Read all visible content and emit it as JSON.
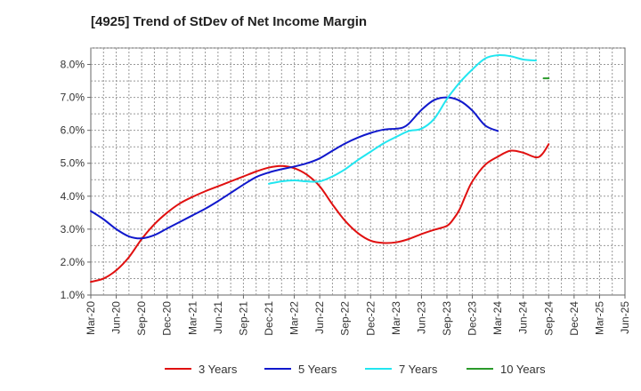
{
  "chart_data": {
    "type": "line",
    "title": "[4925]  Trend of StDev of Net Income Margin",
    "xlabel": "",
    "ylabel": "",
    "x_tick_labels": [
      "Mar-20",
      "Jun-20",
      "Sep-20",
      "Dec-20",
      "Mar-21",
      "Jun-21",
      "Sep-21",
      "Dec-21",
      "Mar-22",
      "Jun-22",
      "Sep-22",
      "Dec-22",
      "Mar-23",
      "Jun-23",
      "Sep-23",
      "Dec-23",
      "Mar-24",
      "Jun-24",
      "Sep-24",
      "Dec-24",
      "Mar-25",
      "Jun-25"
    ],
    "y_tick_labels": [
      "1.0%",
      "2.0%",
      "3.0%",
      "4.0%",
      "5.0%",
      "6.0%",
      "7.0%",
      "8.0%"
    ],
    "ylim": [
      1.0,
      8.5
    ],
    "grid": true,
    "legend_position": "bottom",
    "series": [
      {
        "name": "3 Years",
        "color": "#e01010",
        "values": [
          [
            0,
            1.4
          ],
          [
            1,
            1.5
          ],
          [
            2,
            1.75
          ],
          [
            3,
            2.15
          ],
          [
            4,
            2.7
          ],
          [
            5,
            3.15
          ],
          [
            6,
            3.5
          ],
          [
            7,
            3.78
          ],
          [
            8,
            3.98
          ],
          [
            9,
            4.15
          ],
          [
            10,
            4.3
          ],
          [
            11,
            4.45
          ],
          [
            12,
            4.6
          ],
          [
            13,
            4.75
          ],
          [
            14,
            4.87
          ],
          [
            15,
            4.92
          ],
          [
            16,
            4.85
          ],
          [
            17,
            4.65
          ],
          [
            18,
            4.3
          ],
          [
            19,
            3.75
          ],
          [
            20,
            3.25
          ],
          [
            21,
            2.88
          ],
          [
            22,
            2.65
          ],
          [
            23,
            2.58
          ],
          [
            24,
            2.6
          ],
          [
            25,
            2.7
          ],
          [
            26,
            2.85
          ],
          [
            27,
            2.98
          ],
          [
            28,
            3.1
          ],
          [
            28.5,
            3.3
          ],
          [
            29,
            3.6
          ],
          [
            29.5,
            4.05
          ],
          [
            30,
            4.45
          ],
          [
            31,
            4.95
          ],
          [
            32,
            5.2
          ],
          [
            33,
            5.38
          ],
          [
            34,
            5.32
          ],
          [
            35,
            5.18
          ],
          [
            35.5,
            5.28
          ],
          [
            36,
            5.58
          ]
        ]
      },
      {
        "name": "5 Years",
        "color": "#1018cc",
        "values": [
          [
            0,
            3.55
          ],
          [
            1,
            3.3
          ],
          [
            2,
            3.0
          ],
          [
            3,
            2.78
          ],
          [
            4,
            2.72
          ],
          [
            5,
            2.82
          ],
          [
            6,
            3.02
          ],
          [
            7,
            3.22
          ],
          [
            8,
            3.42
          ],
          [
            9,
            3.62
          ],
          [
            10,
            3.85
          ],
          [
            11,
            4.1
          ],
          [
            12,
            4.35
          ],
          [
            13,
            4.58
          ],
          [
            14,
            4.72
          ],
          [
            15,
            4.82
          ],
          [
            16,
            4.9
          ],
          [
            17,
            5.0
          ],
          [
            18,
            5.15
          ],
          [
            19,
            5.38
          ],
          [
            20,
            5.6
          ],
          [
            21,
            5.78
          ],
          [
            22,
            5.92
          ],
          [
            23,
            6.02
          ],
          [
            24,
            6.05
          ],
          [
            24.5,
            6.08
          ],
          [
            25,
            6.2
          ],
          [
            26,
            6.62
          ],
          [
            27,
            6.92
          ],
          [
            28,
            7.0
          ],
          [
            29,
            6.9
          ],
          [
            30,
            6.6
          ],
          [
            31,
            6.15
          ],
          [
            32,
            5.98
          ]
        ]
      },
      {
        "name": "7 Years",
        "color": "#22e6f0",
        "values": [
          [
            14,
            4.38
          ],
          [
            15,
            4.45
          ],
          [
            16,
            4.48
          ],
          [
            17,
            4.45
          ],
          [
            18,
            4.45
          ],
          [
            19,
            4.6
          ],
          [
            20,
            4.82
          ],
          [
            21,
            5.1
          ],
          [
            22,
            5.35
          ],
          [
            23,
            5.6
          ],
          [
            24,
            5.8
          ],
          [
            25,
            5.98
          ],
          [
            26,
            6.05
          ],
          [
            27,
            6.35
          ],
          [
            28,
            6.95
          ],
          [
            29,
            7.45
          ],
          [
            30,
            7.85
          ],
          [
            31,
            8.18
          ],
          [
            32,
            8.28
          ],
          [
            33,
            8.25
          ],
          [
            34,
            8.15
          ],
          [
            35,
            8.12
          ]
        ]
      },
      {
        "name": "10 Years",
        "color": "#2a9a2a",
        "values": [
          [
            35.6,
            7.58
          ],
          [
            36,
            7.58
          ]
        ]
      }
    ]
  }
}
